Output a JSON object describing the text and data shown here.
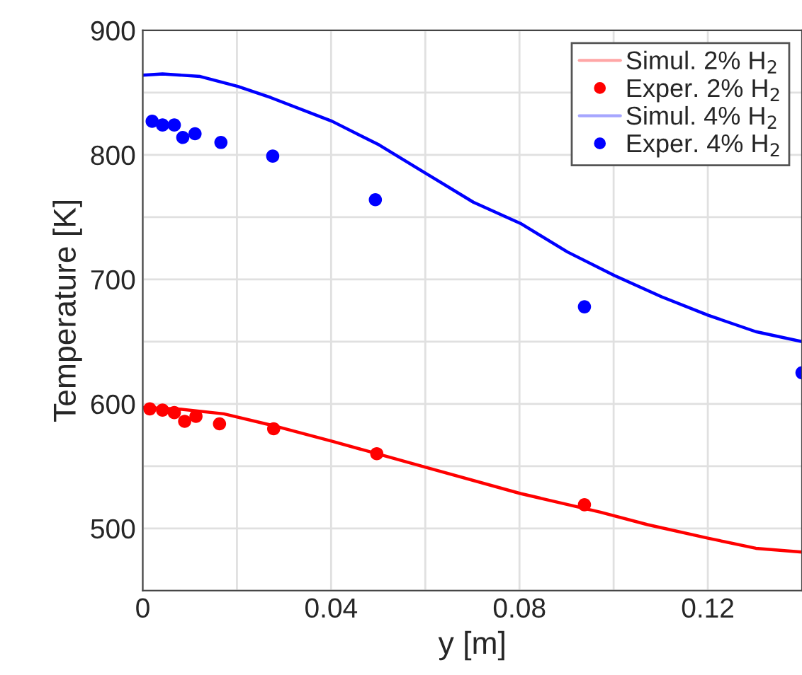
{
  "chart_data": {
    "type": "line",
    "xlabel": "y [m]",
    "ylabel": "Temperature [K]",
    "xlim": [
      0,
      0.14
    ],
    "ylim": [
      450,
      900
    ],
    "xticks": [
      0,
      {
        "value": 0.02,
        "label": null
      },
      0.04,
      {
        "value": 0.06,
        "label": null
      },
      0.08,
      {
        "value": 0.1,
        "label": null
      },
      0.12
    ],
    "yticks": [
      {
        "value": 450,
        "label": null
      },
      500,
      {
        "value": 550,
        "label": null
      },
      600,
      {
        "value": 650,
        "label": null
      },
      700,
      {
        "value": 750,
        "label": null
      },
      800,
      {
        "value": 850,
        "label": null
      },
      900
    ],
    "grid": true,
    "legend": "top right",
    "series": [
      {
        "name": "Simul. 2% H$_{2}$",
        "color": "#ff0000",
        "marker": "none",
        "x": [
          0,
          0.0072,
          0.0172,
          0.0272,
          0.0402,
          0.0497,
          0.0602,
          0.0802,
          0.0972,
          0.1072,
          0.1202,
          0.1302,
          0.14
        ],
        "values": [
          597,
          596,
          592,
          583,
          570,
          560,
          549,
          528,
          513,
          503,
          492,
          484,
          481
        ]
      },
      {
        "name": "Exper. 2% H$_{2}$",
        "type": "scatter",
        "color": "#ff0000",
        "marker": "circle",
        "x": [
          0.0015,
          0.0042,
          0.0067,
          0.0089,
          0.0113,
          0.0163,
          0.0278,
          0.0497,
          0.0938
        ],
        "values": [
          596,
          595,
          593,
          586,
          590,
          584,
          580,
          560,
          519
        ]
      },
      {
        "name": "Simul. 4% H$_{2}$",
        "color": "#0000ff",
        "marker": "none",
        "x": [
          0,
          0.0042,
          0.0122,
          0.0202,
          0.0272,
          0.0402,
          0.0502,
          0.0602,
          0.0702,
          0.0802,
          0.0902,
          0.1002,
          0.1102,
          0.1202,
          0.1302,
          0.14
        ],
        "values": [
          864,
          865,
          863,
          855,
          846,
          827,
          808,
          785,
          762,
          745,
          722,
          703,
          686,
          671,
          658,
          650
        ]
      },
      {
        "name": "Exper. 4% H$_{2}$",
        "type": "scatter",
        "color": "#0000ff",
        "marker": "circle",
        "x": [
          0.002,
          0.0042,
          0.0067,
          0.0085,
          0.0111,
          0.0166,
          0.0276,
          0.0494,
          0.0938,
          0.14
        ],
        "values": [
          827,
          824,
          824,
          814,
          817,
          810,
          799,
          764,
          678,
          625
        ]
      }
    ]
  }
}
